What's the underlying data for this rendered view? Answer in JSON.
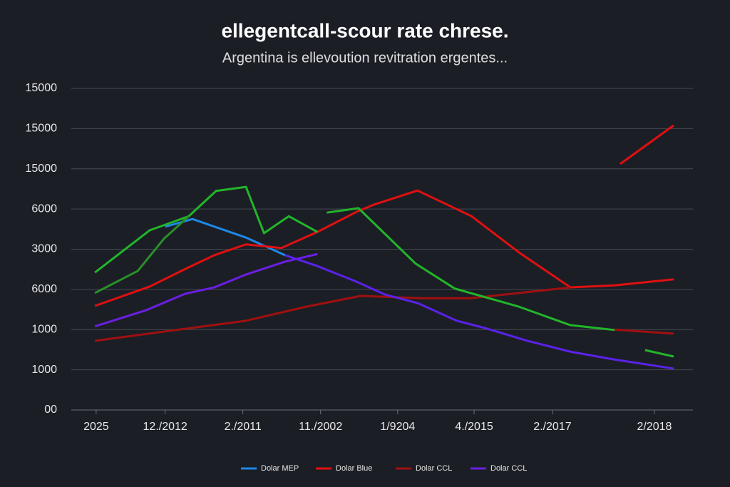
{
  "chart_data": {
    "type": "line",
    "title": "ellegentcall-scour rate  chrese.",
    "subtitle": "Argentina is ellevoution revitration ergentes...",
    "xlim": [
      0,
      100
    ],
    "xticks": [
      {
        "value": 4.0,
        "label": "2025"
      },
      {
        "value": 15.1,
        "label": "12./2012"
      },
      {
        "value": 27.6,
        "label": "2./2011"
      },
      {
        "value": 40.1,
        "label": "11./2002"
      },
      {
        "value": 52.5,
        "label": "1/9204"
      },
      {
        "value": 64.8,
        "label": "4./2015"
      },
      {
        "value": 77.4,
        "label": "2./2017"
      },
      {
        "value": 93.8,
        "label": "2/2018"
      }
    ],
    "ylim": [
      0,
      8
    ],
    "yticks": [
      {
        "value": 0,
        "label": "00"
      },
      {
        "value": 1,
        "label": "1000"
      },
      {
        "value": 2,
        "label": "1000"
      },
      {
        "value": 3,
        "label": "6000"
      },
      {
        "value": 4,
        "label": "3000"
      },
      {
        "value": 5,
        "label": "6000"
      },
      {
        "value": 6,
        "label": "15000"
      },
      {
        "value": 7,
        "label": "15000"
      },
      {
        "value": 8,
        "label": "15000"
      }
    ],
    "grid": true,
    "series": [
      {
        "name": "Dolar MEP",
        "color": "#1e88e5",
        "x": [
          15.1,
          19.5,
          28.1,
          34.4
        ],
        "values": [
          4.56,
          4.75,
          4.29,
          3.85
        ]
      },
      {
        "name": "Dolar Blue",
        "color": "#e01010",
        "x": [
          3.8,
          12.6,
          18.9,
          23.0,
          28.1,
          33.8,
          39.6,
          45.9,
          48.7,
          55.7,
          64.4,
          72.2,
          80.3,
          87.4,
          96.9
        ],
        "values": [
          2.59,
          3.07,
          3.55,
          3.85,
          4.12,
          4.03,
          4.43,
          4.93,
          5.11,
          5.46,
          4.82,
          3.9,
          3.05,
          3.1,
          3.25
        ]
      },
      {
        "name": "Dolar CCL",
        "color": "#a01010",
        "x": [
          3.8,
          14.9,
          28.1,
          37.8,
          46.6,
          56.2,
          64.2,
          80.3
        ],
        "values": [
          1.72,
          1.95,
          2.22,
          2.57,
          2.84,
          2.78,
          2.78,
          3.05
        ]
      },
      {
        "name": "Dolar CCL",
        "color": "#6a1fe0",
        "x": [
          3.8,
          12.0,
          18.3,
          23.0,
          28.1,
          34.4,
          39.6
        ],
        "values": [
          2.08,
          2.48,
          2.89,
          3.05,
          3.37,
          3.69,
          3.88
        ]
      },
      {
        "color": "#5a22e8",
        "x": [
          34.4,
          39.6,
          45.9,
          50.5,
          55.7,
          62.0,
          66.5,
          73.4,
          80.3,
          87.2,
          96.9
        ],
        "values": [
          3.85,
          3.58,
          3.19,
          2.87,
          2.66,
          2.22,
          2.04,
          1.72,
          1.45,
          1.26,
          1.03
        ]
      },
      {
        "color": "#22b52a",
        "x": [
          3.8,
          12.6,
          18.9,
          23.3,
          28.1,
          31.0,
          35.0,
          39.6
        ],
        "values": [
          3.42,
          4.47,
          4.82,
          5.45,
          5.55,
          4.4,
          4.82,
          4.43
        ]
      },
      {
        "color": "#2a8f2a",
        "x": [
          3.8,
          10.7,
          14.9,
          18.9
        ],
        "values": [
          2.91,
          3.46,
          4.26,
          4.82
        ]
      },
      {
        "color": "#22b52a",
        "x": [
          41.1,
          46.2,
          55.4,
          61.7,
          72.0,
          80.3,
          87.4
        ],
        "values": [
          4.91,
          5.02,
          3.64,
          3.02,
          2.57,
          2.11,
          1.99
        ]
      },
      {
        "color": "#22b52a",
        "x": [
          92.3,
          96.9
        ],
        "values": [
          1.49,
          1.33
        ]
      },
      {
        "color": "#e01010",
        "x": [
          88.3,
          96.9
        ],
        "values": [
          6.12,
          7.08
        ]
      },
      {
        "color": "#a01010",
        "x": [
          87.4,
          96.9
        ],
        "values": [
          2.0,
          1.9
        ]
      }
    ]
  }
}
